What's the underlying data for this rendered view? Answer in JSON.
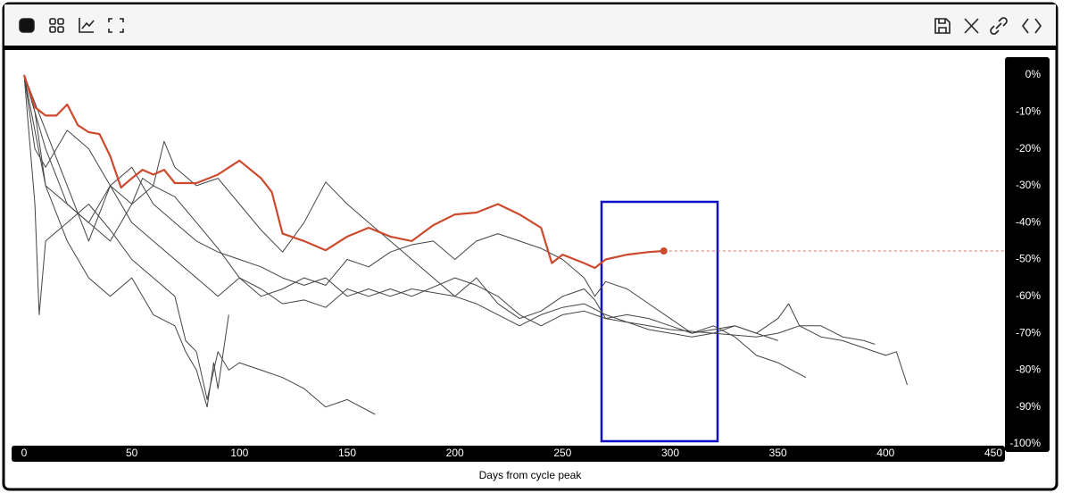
{
  "chart_data": {
    "type": "line",
    "xlabel": "Days from cycle peak",
    "xlim": [
      0,
      450
    ],
    "xticks": [
      0,
      50,
      100,
      150,
      200,
      250,
      300,
      350,
      400,
      450
    ],
    "ylim": [
      -100,
      2
    ],
    "yticks": [
      {
        "value": 0,
        "label": "0%"
      },
      {
        "value": -10,
        "label": "-10%"
      },
      {
        "value": -20,
        "label": "-20%"
      },
      {
        "value": -30,
        "label": "-30%"
      },
      {
        "value": -40,
        "label": "-40%"
      },
      {
        "value": -50,
        "label": "-50%"
      },
      {
        "value": -60,
        "label": "-60%"
      },
      {
        "value": -70,
        "label": "-70%"
      },
      {
        "value": -80,
        "label": "-80%"
      },
      {
        "value": -90,
        "label": "-90%"
      },
      {
        "value": -100,
        "label": "-100%"
      }
    ],
    "series": [
      {
        "color": "#444444",
        "line_width": 1,
        "x": [
          0,
          5,
          7,
          10,
          20,
          30,
          40,
          50,
          60,
          70,
          75,
          80,
          85,
          90,
          95,
          100,
          110,
          120,
          130,
          140,
          150,
          163
        ],
        "values": [
          0,
          -35,
          -65,
          -45,
          -40,
          -35,
          -42,
          -50,
          -55,
          -60,
          -72,
          -75,
          -88,
          -75,
          -80,
          -78,
          -80,
          -82,
          -85,
          -90,
          -88,
          -92
        ]
      },
      {
        "color": "#444444",
        "line_width": 1,
        "x": [
          0,
          10,
          20,
          30,
          40,
          50,
          60,
          70,
          80,
          90,
          100,
          110,
          120,
          130,
          140,
          150,
          160,
          170,
          180,
          200,
          210,
          220,
          230,
          240,
          250,
          260,
          270,
          280,
          290,
          300,
          320,
          340,
          350,
          360,
          370,
          380,
          390,
          400,
          405,
          410
        ],
        "values": [
          0,
          -30,
          -35,
          -40,
          -30,
          -35,
          -30,
          -33,
          -40,
          -47,
          -55,
          -58,
          -62,
          -61,
          -63,
          -58,
          -60,
          -58,
          -60,
          -55,
          -57,
          -60,
          -65,
          -68,
          -65,
          -64,
          -66,
          -67,
          -68,
          -69,
          -70,
          -71,
          -70,
          -68,
          -71,
          -72,
          -74,
          -76,
          -75,
          -84
        ]
      },
      {
        "color": "#444444",
        "line_width": 1,
        "x": [
          0,
          5,
          10,
          20,
          30,
          40,
          50,
          60,
          70,
          80,
          90,
          100,
          110,
          120,
          130,
          140,
          150,
          160,
          170,
          180,
          200,
          210,
          220,
          230,
          240,
          250,
          260,
          265,
          270,
          280,
          290,
          300,
          310,
          320,
          330,
          340,
          350,
          363
        ],
        "values": [
          0,
          -20,
          -25,
          -15,
          -20,
          -30,
          -25,
          -35,
          -40,
          -45,
          -48,
          -50,
          -52,
          -55,
          -57,
          -55,
          -60,
          -58,
          -60,
          -58,
          -60,
          -55,
          -62,
          -66,
          -64,
          -60,
          -58,
          -61,
          -66,
          -65,
          -66,
          -68,
          -70,
          -68,
          -71,
          -76,
          -78,
          -82
        ]
      },
      {
        "color": "#444444",
        "line_width": 1,
        "x": [
          0,
          10,
          20,
          30,
          40,
          50,
          55,
          60,
          65,
          70,
          80,
          90,
          100,
          110,
          120,
          130,
          140,
          150,
          160,
          170,
          180,
          190,
          200,
          210,
          220,
          230,
          240,
          250,
          260,
          270,
          280,
          290,
          300,
          310,
          320,
          330,
          340,
          350,
          355,
          360,
          370,
          380,
          390,
          395
        ],
        "values": [
          0,
          -20,
          -35,
          -40,
          -45,
          -35,
          -28,
          -30,
          -18,
          -25,
          -30,
          -28,
          -35,
          -42,
          -48,
          -40,
          -29,
          -35,
          -40,
          -45,
          -50,
          -55,
          -60,
          -62,
          -65,
          -68,
          -65,
          -63,
          -62,
          -65,
          -67,
          -69,
          -70,
          -71,
          -70,
          -68,
          -70,
          -66,
          -62,
          -68,
          -68,
          -71,
          -72,
          -73
        ]
      },
      {
        "color": "#444444",
        "line_width": 1,
        "x": [
          0,
          10,
          20,
          30,
          40,
          50,
          60,
          70,
          80,
          90,
          100,
          110,
          120,
          130,
          140,
          150,
          160,
          170,
          180,
          190,
          200,
          210,
          220,
          230,
          240,
          250,
          260,
          265,
          270,
          280,
          290,
          300,
          310,
          320,
          330,
          340,
          350
        ],
        "values": [
          0,
          -15,
          -30,
          -45,
          -30,
          -40,
          -45,
          -50,
          -55,
          -60,
          -55,
          -60,
          -58,
          -55,
          -57,
          -50,
          -52,
          -48,
          -46,
          -45,
          -50,
          -45,
          -43,
          -45,
          -47,
          -50,
          -55,
          -60,
          -56,
          -58,
          -62,
          -66,
          -70,
          -69,
          -68,
          -70,
          -72
        ]
      },
      {
        "color": "#444444",
        "line_width": 1,
        "x": [
          0,
          5,
          10,
          20,
          30,
          40,
          50,
          60,
          70,
          75,
          80,
          85,
          88,
          90,
          95
        ],
        "values": [
          0,
          -10,
          -30,
          -45,
          -55,
          -60,
          -55,
          -65,
          -68,
          -75,
          -80,
          -90,
          -78,
          -85,
          -65
        ]
      },
      {
        "color": "#cc4a2e",
        "line_width": 2.2,
        "end_marker": true,
        "last_value_line": true,
        "x": [
          0,
          5,
          10,
          15,
          20,
          25,
          30,
          35,
          40,
          45,
          50,
          55,
          60,
          65,
          70,
          80,
          90,
          100,
          110,
          115,
          120,
          130,
          140,
          150,
          160,
          170,
          180,
          190,
          200,
          210,
          220,
          230,
          240,
          245,
          250,
          260,
          265,
          270,
          280,
          290,
          297
        ],
        "values": [
          0,
          -8.7,
          -11,
          -11,
          -8,
          -13.6,
          -15.5,
          -16,
          -22,
          -30.5,
          -28,
          -25.7,
          -27,
          -25.7,
          -29.3,
          -29.3,
          -27,
          -23.2,
          -28,
          -31.7,
          -43,
          -45,
          -47.5,
          -43.8,
          -41.4,
          -43.8,
          -45,
          -40.7,
          -37.8,
          -37.3,
          -35,
          -37.8,
          -41.4,
          -51,
          -48.7,
          -51,
          -52.3,
          -50,
          -48.7,
          -48,
          -47.7
        ]
      }
    ]
  }
}
